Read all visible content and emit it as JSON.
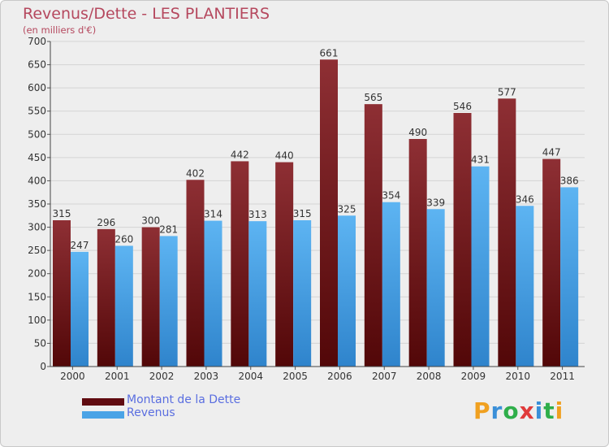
{
  "chart_data": {
    "type": "bar",
    "title": "Revenus/Dette - LES PLANTIERS",
    "subtitle": "(en milliers d'€)",
    "xlabel": "",
    "ylabel": "",
    "ylim": [
      0,
      700
    ],
    "yticks": [
      "0",
      "50",
      "100",
      "150",
      "200",
      "250",
      "300",
      "350",
      "400",
      "450",
      "500",
      "550",
      "600",
      "650",
      "700"
    ],
    "grid": true,
    "legend_position": "bottom-left",
    "categories": [
      "2000",
      "2001",
      "2002",
      "2003",
      "2004",
      "2005",
      "2006",
      "2007",
      "2008",
      "2009",
      "2010",
      "2011"
    ],
    "series": [
      {
        "name": "Montant de la Dette",
        "color": "#7a1d22",
        "values": [
          315,
          296,
          300,
          402,
          442,
          440,
          661,
          565,
          490,
          546,
          577,
          447
        ]
      },
      {
        "name": "Revenus",
        "color": "#4aa3e6",
        "values": [
          247,
          260,
          281,
          314,
          313,
          315,
          325,
          354,
          339,
          431,
          346,
          386
        ]
      }
    ]
  },
  "logo": {
    "letters": [
      "P",
      "r",
      "o",
      "x",
      "i",
      "t",
      "i"
    ],
    "colors": [
      "#f0a020",
      "#3a8fd8",
      "#2fae4a",
      "#e03a3a",
      "#3a8fd8",
      "#2fae4a",
      "#f0a020"
    ]
  }
}
